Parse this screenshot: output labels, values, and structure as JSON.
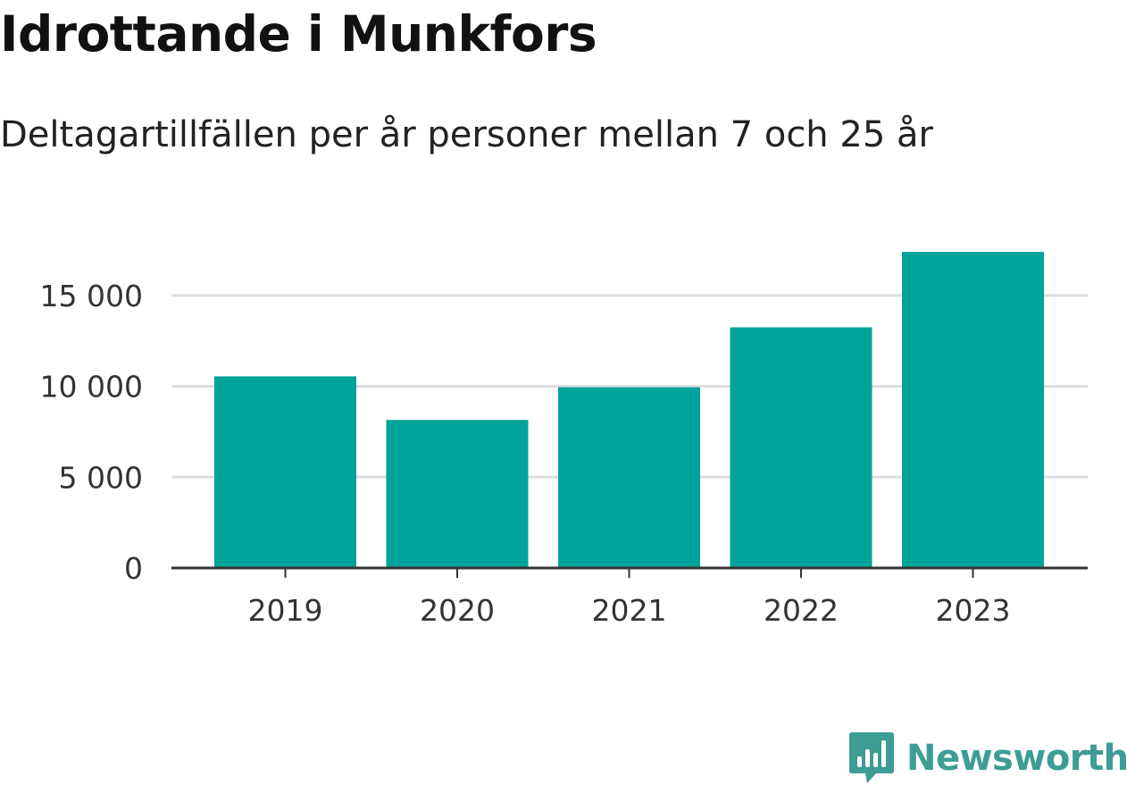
{
  "colors": {
    "bar": "#00a39a",
    "grid": "#dddddd",
    "axis": "#333333",
    "brand": "#3d9d94"
  },
  "chart_data": {
    "type": "bar",
    "title": "Idrottande i Munkfors",
    "subtitle": "Deltagartillfällen per år personer mellan 7 och 25 år",
    "categories": [
      "2019",
      "2020",
      "2021",
      "2022",
      "2023"
    ],
    "values": [
      10550,
      8150,
      9950,
      13250,
      17400
    ],
    "ylim": [
      0,
      17500
    ],
    "yticks": [
      0,
      5000,
      10000,
      15000
    ],
    "ytick_labels": [
      "0",
      "5 000",
      "10 000",
      "15 000"
    ],
    "grid": true,
    "legend": "none"
  },
  "branding": {
    "text": "Newsworthy",
    "icon": "newsworthy-chart-logo-icon"
  }
}
